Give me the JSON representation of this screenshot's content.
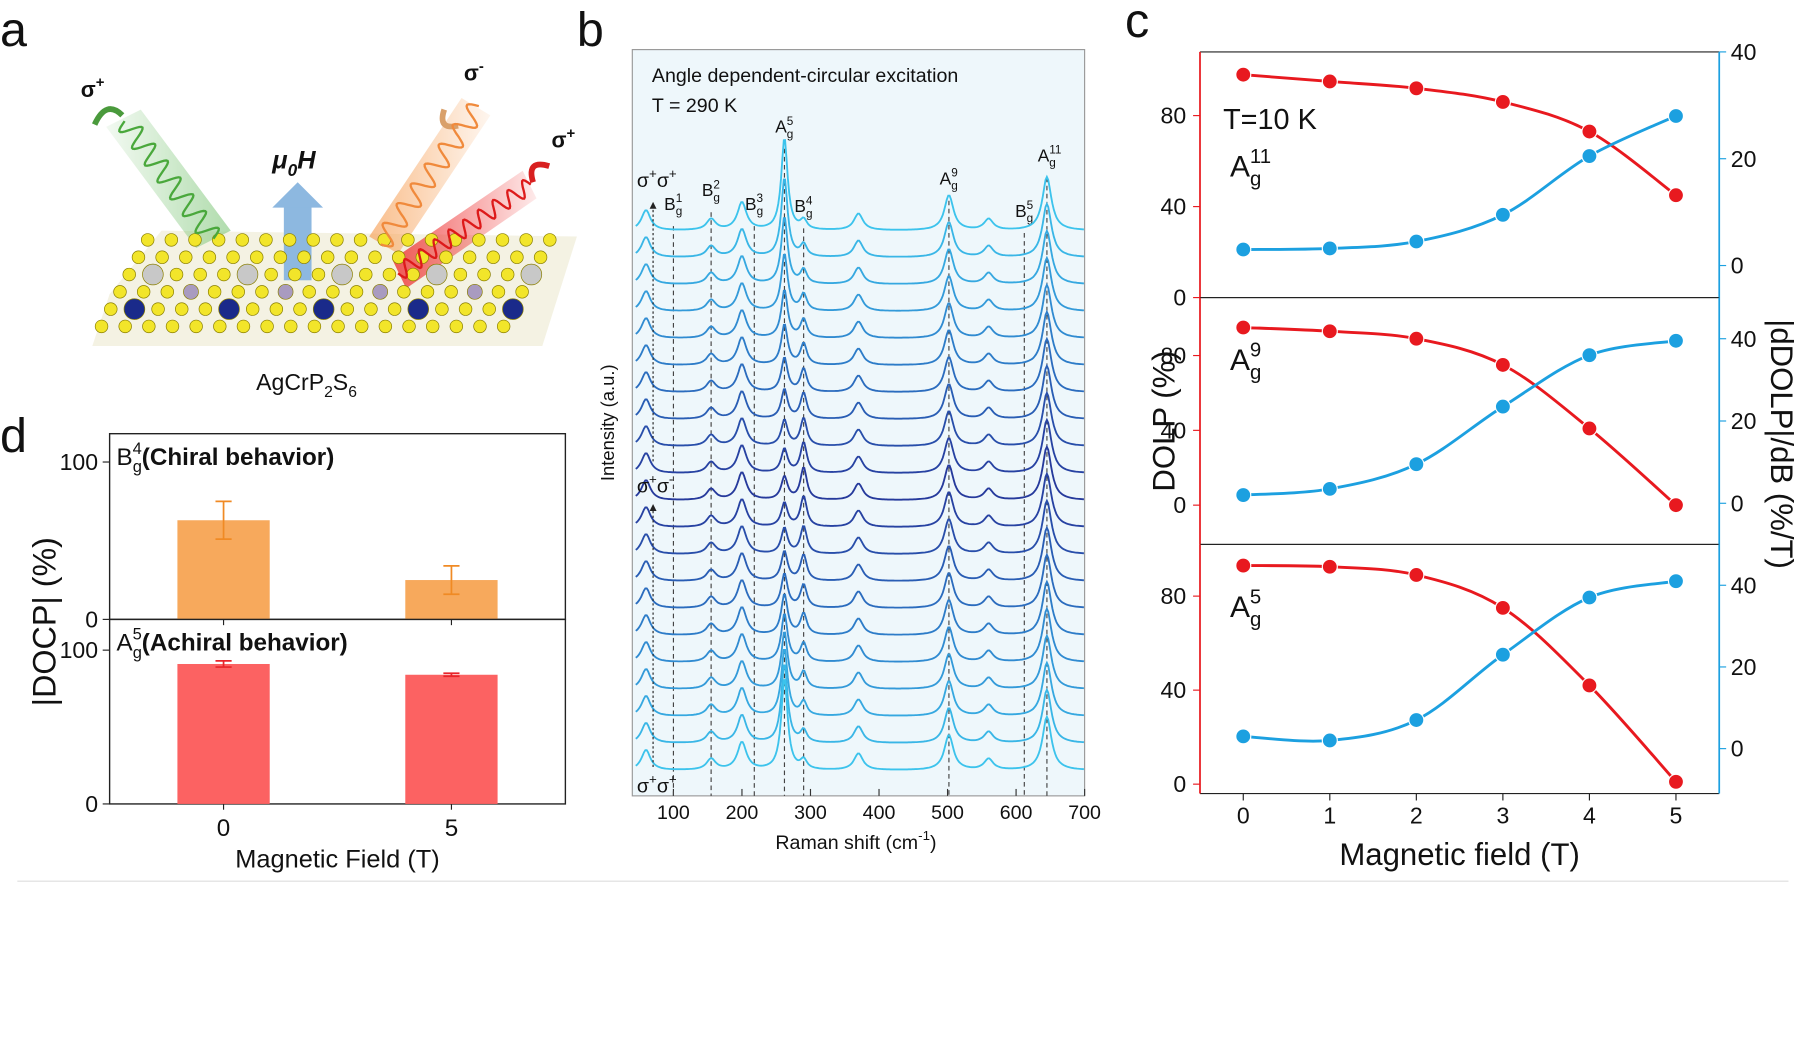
{
  "figure": {
    "panel_labels": [
      "a",
      "b",
      "c",
      "d"
    ]
  },
  "illustration": {
    "beams": [
      [
        {
          "t": "σ"
        },
        {
          "t": "+",
          "s": "sup"
        }
      ],
      [
        {
          "t": "σ"
        },
        {
          "t": "-",
          "s": "sup"
        }
      ],
      [
        {
          "t": "σ"
        },
        {
          "t": "+",
          "s": "sup"
        }
      ]
    ],
    "field": [
      {
        "t": "μ"
      },
      {
        "t": "0",
        "s": "sub"
      },
      {
        "t": "H"
      }
    ],
    "material": [
      {
        "t": "AgCrP"
      },
      {
        "t": "2",
        "s": "sub"
      },
      {
        "t": "S"
      },
      {
        "t": "6",
        "s": "sub"
      }
    ]
  },
  "chart_data": [
    {
      "type": "spectra",
      "title": "Angle dependent-circular excitation",
      "subtitle": "T = 290 K",
      "xlabel": [
        {
          "t": "Raman shift (cm"
        },
        {
          "t": "-1",
          "s": "sup"
        },
        {
          "t": ")"
        }
      ],
      "ylabel": "Intensity (a.u.)",
      "xlim": [
        40,
        700
      ],
      "xticks": [
        100,
        200,
        300,
        400,
        500,
        600,
        700
      ],
      "background": "#eef7fb",
      "peaks": {
        "x": [
          60,
          155,
          200,
          370,
          502,
          560,
          645
        ],
        "heights": [
          0.22,
          0.12,
          0.3,
          0.18,
          0.38,
          0.12,
          0.58
        ]
      },
      "peak_width": 8,
      "variable_peaks": [
        262,
        290
      ],
      "modes": [
        {
          "x": 100,
          "label": [
            {
              "t": "B"
            },
            {
              "t": "g",
              "s": "sub"
            },
            {
              "t": "1",
              "s": "sup"
            }
          ]
        },
        {
          "x": 155,
          "label": [
            {
              "t": "B"
            },
            {
              "t": "g",
              "s": "sub"
            },
            {
              "t": "2",
              "s": "sup"
            }
          ]
        },
        {
          "x": 218,
          "label": [
            {
              "t": "B"
            },
            {
              "t": "g",
              "s": "sub"
            },
            {
              "t": "3",
              "s": "sup"
            }
          ]
        },
        {
          "x": 262,
          "label": [
            {
              "t": "A"
            },
            {
              "t": "g",
              "s": "sub"
            },
            {
              "t": "5",
              "s": "sup"
            }
          ]
        },
        {
          "x": 290,
          "label": [
            {
              "t": "B"
            },
            {
              "t": "g",
              "s": "sub"
            },
            {
              "t": "4",
              "s": "sup"
            }
          ]
        },
        {
          "x": 502,
          "label": [
            {
              "t": "A"
            },
            {
              "t": "g",
              "s": "sub"
            },
            {
              "t": "9",
              "s": "sup"
            }
          ]
        },
        {
          "x": 612,
          "label": [
            {
              "t": "B"
            },
            {
              "t": "g",
              "s": "sub"
            },
            {
              "t": "5",
              "s": "sup"
            }
          ]
        },
        {
          "x": 645,
          "label": [
            {
              "t": "A"
            },
            {
              "t": "g",
              "s": "sub"
            },
            {
              "t": "11",
              "s": "sup"
            }
          ]
        }
      ],
      "polarizations": [
        [
          {
            "t": "σ"
          },
          {
            "t": "+",
            "s": "sup"
          },
          {
            "t": "σ"
          },
          {
            "t": "+",
            "s": "sup"
          }
        ],
        [
          {
            "t": "σ"
          },
          {
            "t": "+",
            "s": "sup"
          },
          {
            "t": "σ"
          },
          {
            "t": "-",
            "s": "sup"
          }
        ],
        [
          {
            "t": "σ"
          },
          {
            "t": "+",
            "s": "sup"
          },
          {
            "t": "σ"
          },
          {
            "t": "+",
            "s": "sup"
          }
        ]
      ],
      "series": [
        {
          "color": "#3cc3ec",
          "values": [
            1.0,
            0.1
          ]
        },
        {
          "color": "#39b6e6",
          "values": [
            0.86,
            0.13
          ]
        },
        {
          "color": "#36a8e0",
          "values": [
            0.73,
            0.15
          ]
        },
        {
          "color": "#339ad9",
          "values": [
            0.62,
            0.18
          ]
        },
        {
          "color": "#308bd1",
          "values": [
            0.52,
            0.2
          ]
        },
        {
          "color": "#2d7cc8",
          "values": [
            0.44,
            0.23
          ]
        },
        {
          "color": "#2b6cbe",
          "values": [
            0.37,
            0.25
          ]
        },
        {
          "color": "#295db4",
          "values": [
            0.32,
            0.28
          ]
        },
        {
          "color": "#284eaa",
          "values": [
            0.28,
            0.3
          ]
        },
        {
          "color": "#2742a2",
          "values": [
            0.26,
            0.33
          ]
        },
        {
          "color": "#263a9c",
          "values": [
            0.25,
            0.35
          ]
        },
        {
          "color": "#2742a2",
          "values": [
            0.26,
            0.33
          ]
        },
        {
          "color": "#284eaa",
          "values": [
            0.28,
            0.3
          ]
        },
        {
          "color": "#295db4",
          "values": [
            0.32,
            0.28
          ]
        },
        {
          "color": "#2b6cbe",
          "values": [
            0.37,
            0.25
          ]
        },
        {
          "color": "#2d7cc8",
          "values": [
            0.44,
            0.23
          ]
        },
        {
          "color": "#308bd1",
          "values": [
            0.52,
            0.2
          ]
        },
        {
          "color": "#339ad9",
          "values": [
            0.62,
            0.18
          ]
        },
        {
          "color": "#36a8e0",
          "values": [
            0.73,
            0.15
          ]
        },
        {
          "color": "#39b6e6",
          "values": [
            0.86,
            0.13
          ]
        },
        {
          "color": "#3cc3ec",
          "values": [
            1.0,
            0.1
          ]
        }
      ]
    },
    {
      "type": "line",
      "annotation": "T=10 K",
      "mode_label": [
        {
          "t": "A"
        },
        {
          "t": "g",
          "s": "sub"
        },
        {
          "t": "11",
          "s": "sup"
        }
      ],
      "x": [
        0,
        1,
        2,
        3,
        4,
        5
      ],
      "xlim": [
        -0.5,
        5.5
      ],
      "ylim": [
        0,
        108
      ],
      "yticks": [
        0,
        40,
        80
      ],
      "y2lim": [
        -6,
        40
      ],
      "y2ticks": [
        0,
        20,
        40
      ],
      "series": [
        {
          "color": "#e8191f",
          "values": [
            98,
            95,
            92,
            86,
            73,
            45
          ]
        },
        {
          "color": "#1ca0e0",
          "axis": "y2",
          "values": [
            3,
            3.2,
            4.5,
            9.5,
            20.5,
            28
          ]
        }
      ]
    },
    {
      "type": "line",
      "mode_label": [
        {
          "t": "A"
        },
        {
          "t": "g",
          "s": "sub"
        },
        {
          "t": "9",
          "s": "sup"
        }
      ],
      "ylabel": "DOLP (%)",
      "y2label": "|dDOLP|/dB (%/T)",
      "x": [
        0,
        1,
        2,
        3,
        4,
        5
      ],
      "xlim": [
        -0.5,
        5.5
      ],
      "ylim": [
        -21,
        111
      ],
      "yticks": [
        0,
        40,
        80
      ],
      "y2lim": [
        -10,
        50
      ],
      "y2ticks": [
        0,
        20,
        40
      ],
      "series": [
        {
          "color": "#e8191f",
          "values": [
            95,
            93,
            89,
            75,
            41,
            0
          ]
        },
        {
          "color": "#1ca0e0",
          "axis": "y2",
          "values": [
            2,
            3.5,
            9.5,
            23.5,
            36,
            39.5
          ]
        }
      ]
    },
    {
      "type": "line",
      "mode_label": [
        {
          "t": "A"
        },
        {
          "t": "g",
          "s": "sub"
        },
        {
          "t": "5",
          "s": "sup"
        }
      ],
      "xlabel": "Magnetic field (T)",
      "x": [
        0,
        1,
        2,
        3,
        4,
        5
      ],
      "xlim": [
        -0.5,
        5.5
      ],
      "xticks": [
        0,
        1,
        2,
        3,
        4,
        5
      ],
      "ylim": [
        -4,
        102
      ],
      "yticks": [
        0,
        40,
        80
      ],
      "y2lim": [
        -11,
        50
      ],
      "y2ticks": [
        0,
        20,
        40
      ],
      "series": [
        {
          "color": "#e8191f",
          "values": [
            93,
            92.5,
            89,
            75,
            42,
            1
          ]
        },
        {
          "color": "#1ca0e0",
          "axis": "y2",
          "values": [
            3,
            2,
            7,
            23,
            37,
            41
          ]
        }
      ]
    },
    {
      "type": "bar",
      "label": [
        {
          "t": "B"
        },
        {
          "t": "g",
          "s": "sub"
        },
        {
          "t": "4",
          "s": "sup"
        }
      ],
      "note": "(Chiral behavior)",
      "ylabel": "|DOCP| (%)",
      "values": [
        63,
        25
      ],
      "errors": [
        12,
        9
      ],
      "color": "#f7a95c",
      "error_color": "#f08a24",
      "ylim": [
        0,
        118
      ],
      "yticks": [
        0,
        100
      ]
    },
    {
      "type": "bar",
      "label": [
        {
          "t": "A"
        },
        {
          "t": "g",
          "s": "sub"
        },
        {
          "t": "5",
          "s": "sup"
        }
      ],
      "note": "(Achiral behavior)",
      "categories": [
        "0",
        "5"
      ],
      "xlabel": "Magnetic Field (T)",
      "values": [
        91,
        84
      ],
      "errors": [
        2,
        1
      ],
      "color": "#fc6262",
      "error_color": "#e8242a",
      "ylim": [
        0,
        120
      ],
      "yticks": [
        0,
        100
      ]
    }
  ]
}
